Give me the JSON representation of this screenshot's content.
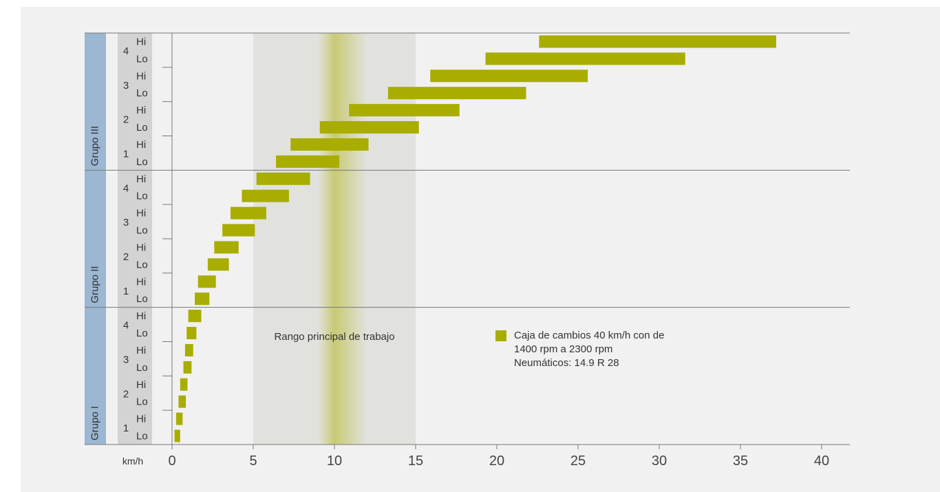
{
  "chart_data": {
    "type": "bar",
    "orientation": "horizontal",
    "xlabel": "km/h",
    "xlim": [
      0,
      40
    ],
    "xticks": [
      0,
      5,
      10,
      15,
      20,
      25,
      30,
      35,
      40
    ],
    "highlight_band": {
      "from": 5,
      "to": 15,
      "label": "Rango principal de trabajo"
    },
    "groups": [
      {
        "label": "Grupo III",
        "gears": [
          {
            "gear": "4",
            "ranges": [
              {
                "label": "Hi",
                "start": 22.6,
                "end": 37.2
              },
              {
                "label": "Lo",
                "start": 19.3,
                "end": 31.6
              }
            ]
          },
          {
            "gear": "3",
            "ranges": [
              {
                "label": "Hi",
                "start": 15.9,
                "end": 25.6
              },
              {
                "label": "Lo",
                "start": 13.3,
                "end": 21.8
              }
            ]
          },
          {
            "gear": "2",
            "ranges": [
              {
                "label": "Hi",
                "start": 10.9,
                "end": 17.7
              },
              {
                "label": "Lo",
                "start": 9.1,
                "end": 15.2
              }
            ]
          },
          {
            "gear": "1",
            "ranges": [
              {
                "label": "Hi",
                "start": 7.3,
                "end": 12.1
              },
              {
                "label": "Lo",
                "start": 6.4,
                "end": 10.3
              }
            ]
          }
        ]
      },
      {
        "label": "Grupo II",
        "gears": [
          {
            "gear": "4",
            "ranges": [
              {
                "label": "Hi",
                "start": 5.2,
                "end": 8.5
              },
              {
                "label": "Lo",
                "start": 4.3,
                "end": 7.2
              }
            ]
          },
          {
            "gear": "3",
            "ranges": [
              {
                "label": "Hi",
                "start": 3.6,
                "end": 5.8
              },
              {
                "label": "Lo",
                "start": 3.1,
                "end": 5.1
              }
            ]
          },
          {
            "gear": "2",
            "ranges": [
              {
                "label": "Hi",
                "start": 2.6,
                "end": 4.1
              },
              {
                "label": "Lo",
                "start": 2.2,
                "end": 3.5
              }
            ]
          },
          {
            "gear": "1",
            "ranges": [
              {
                "label": "Hi",
                "start": 1.6,
                "end": 2.7
              },
              {
                "label": "Lo",
                "start": 1.4,
                "end": 2.3
              }
            ]
          }
        ]
      },
      {
        "label": "Grupo I",
        "gears": [
          {
            "gear": "4",
            "ranges": [
              {
                "label": "Hi",
                "start": 1.0,
                "end": 1.8
              },
              {
                "label": "Lo",
                "start": 0.9,
                "end": 1.5
              }
            ]
          },
          {
            "gear": "3",
            "ranges": [
              {
                "label": "Hi",
                "start": 0.8,
                "end": 1.3
              },
              {
                "label": "Lo",
                "start": 0.7,
                "end": 1.2
              }
            ]
          },
          {
            "gear": "2",
            "ranges": [
              {
                "label": "Hi",
                "start": 0.5,
                "end": 0.95
              },
              {
                "label": "Lo",
                "start": 0.4,
                "end": 0.85
              }
            ]
          },
          {
            "gear": "1",
            "ranges": [
              {
                "label": "Hi",
                "start": 0.25,
                "end": 0.65
              },
              {
                "label": "Lo",
                "start": 0.15,
                "end": 0.5
              }
            ]
          }
        ]
      }
    ],
    "legend": {
      "swatch_color": "#a9ad00",
      "lines": [
        "Caja de cambios 40 km/h con de",
        "1400 rpm a 2300 rpm",
        "Neumáticos: 14.9 R 28"
      ]
    },
    "colors": {
      "bar": "#a9ad00",
      "band_base": "#e1e2de",
      "band_center": "#c9ca74",
      "group_strip": "#9bb7d1",
      "gear_strip": "#d3d3d3",
      "separator": "#777777"
    }
  }
}
